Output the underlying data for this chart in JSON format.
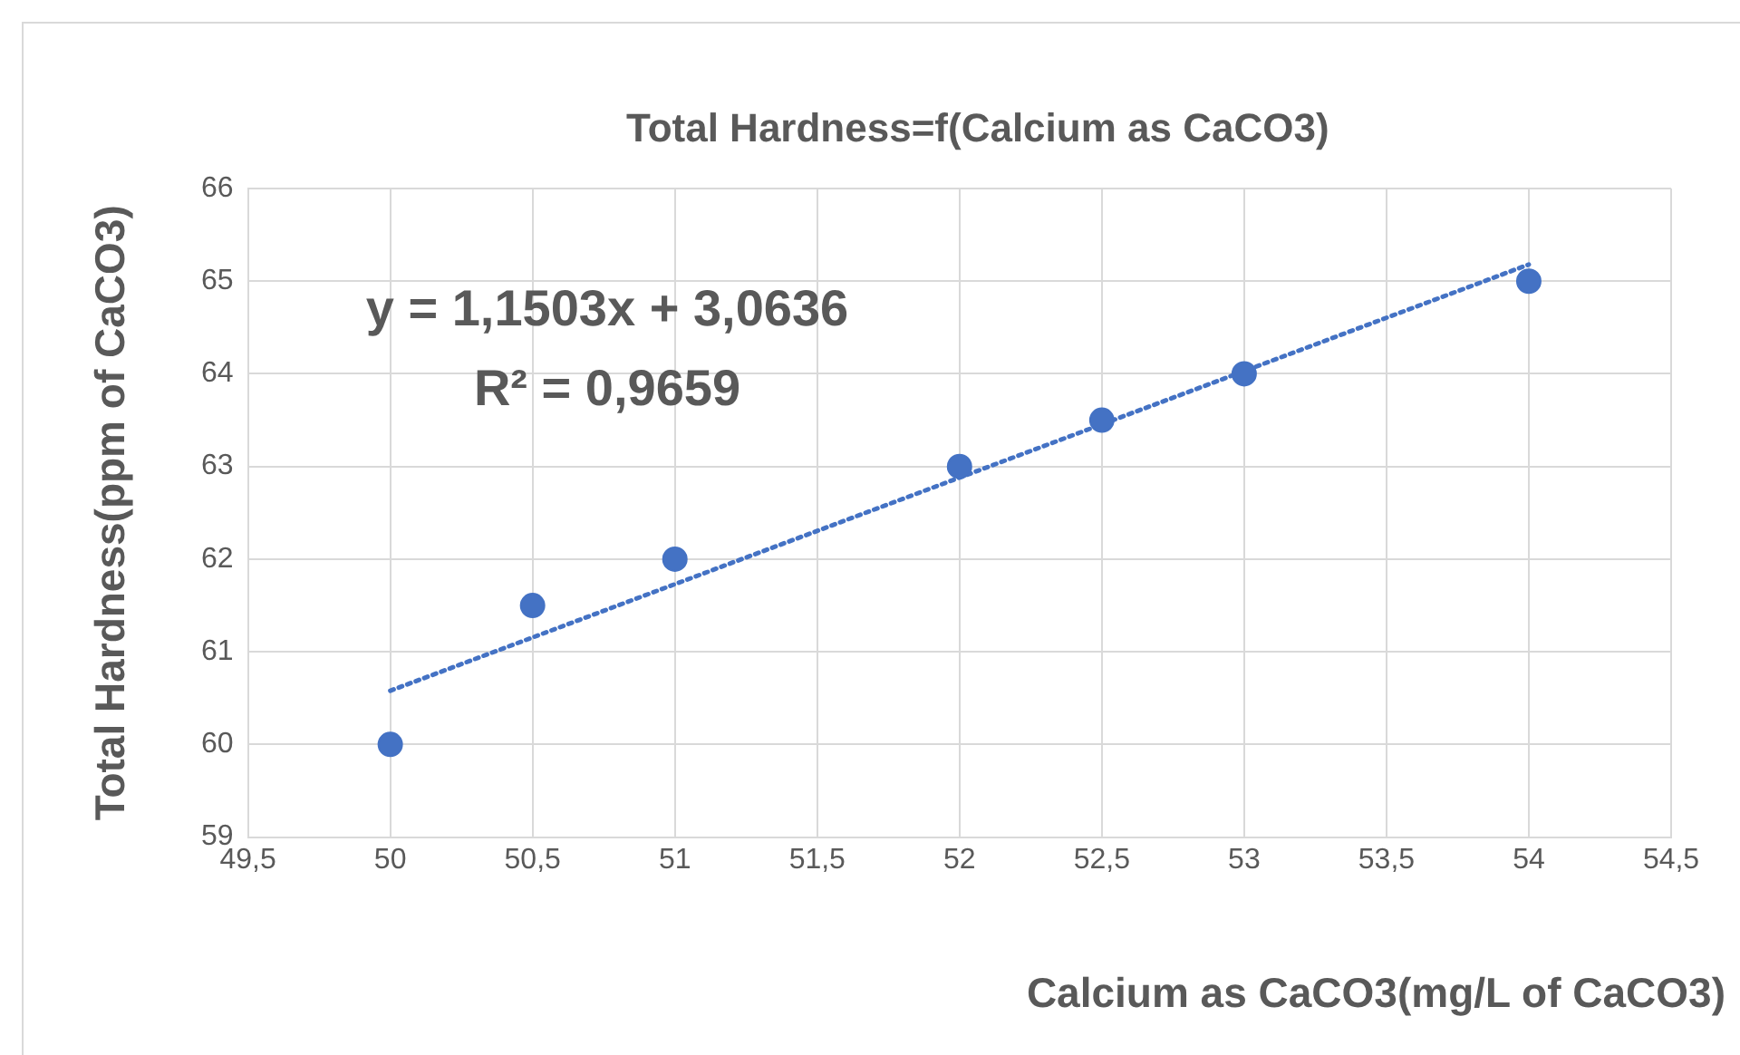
{
  "chart_data": {
    "type": "scatter",
    "title": "Total Hardness=f(Calcium as CaCO3)",
    "xlabel": "Calcium as CaCO3(mg/L of CaCO3)",
    "ylabel": "Total Hardness(ppm of CaCO3)",
    "annotations": [
      "y = 1,1503x + 3,0636",
      "R² = 0,9659"
    ],
    "series": [
      {
        "type": "scatter",
        "color": "#4472c4",
        "marker": "circle",
        "x": [
          50,
          50.5,
          51,
          52,
          52.5,
          53,
          54
        ],
        "values": [
          60,
          61.5,
          62,
          63,
          63.5,
          64,
          65
        ]
      },
      {
        "type": "line",
        "color": "#4472c4",
        "line_style": "dotted",
        "marker": "none",
        "x": [
          50,
          54
        ],
        "values": [
          60.58,
          65.18
        ]
      }
    ],
    "xlim": [
      49.5,
      54.5
    ],
    "xticks": [
      {
        "value": 49.5,
        "label": "49,5"
      },
      50,
      {
        "value": 50.5,
        "label": "50,5"
      },
      51,
      {
        "value": 51.5,
        "label": "51,5"
      },
      52,
      {
        "value": 52.5,
        "label": "52,5"
      },
      53,
      {
        "value": 53.5,
        "label": "53,5"
      },
      54,
      {
        "value": 54.5,
        "label": "54,5"
      }
    ],
    "ylim": [
      59,
      66
    ],
    "yticks": [
      59,
      60,
      61,
      62,
      63,
      64,
      65,
      66
    ],
    "grid": true,
    "legend": false
  }
}
